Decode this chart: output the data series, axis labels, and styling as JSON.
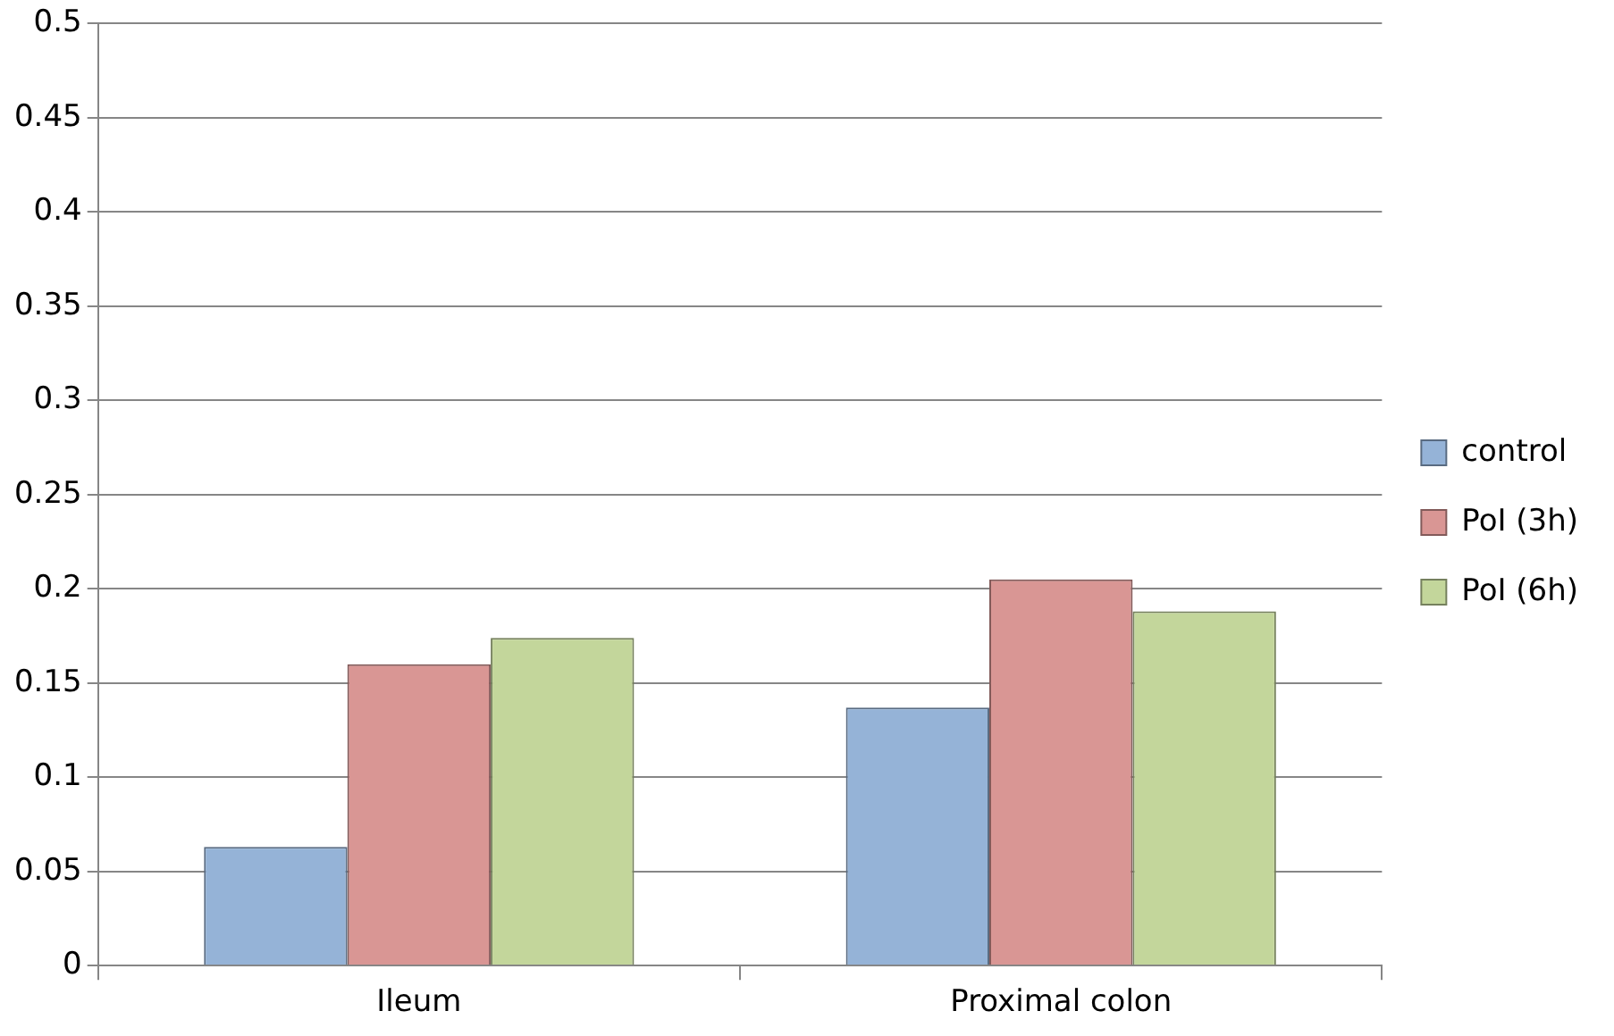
{
  "chart_data": {
    "type": "bar",
    "categories": [
      "Ileum",
      "Proximal colon"
    ],
    "series": [
      {
        "name": "control",
        "color": "#95b3d7",
        "values": [
          0.063,
          0.137
        ]
      },
      {
        "name": "PoI (3h)",
        "color": "#d99694",
        "values": [
          0.16,
          0.205
        ]
      },
      {
        "name": "PoI (6h)",
        "color": "#c3d69b",
        "values": [
          0.174,
          0.188
        ]
      }
    ],
    "ylim": [
      0,
      0.5
    ],
    "yticks": [
      0,
      0.05,
      0.1,
      0.15,
      0.2,
      0.25,
      0.3,
      0.35,
      0.4,
      0.45,
      0.5
    ],
    "grid": "y",
    "legend": "right"
  }
}
